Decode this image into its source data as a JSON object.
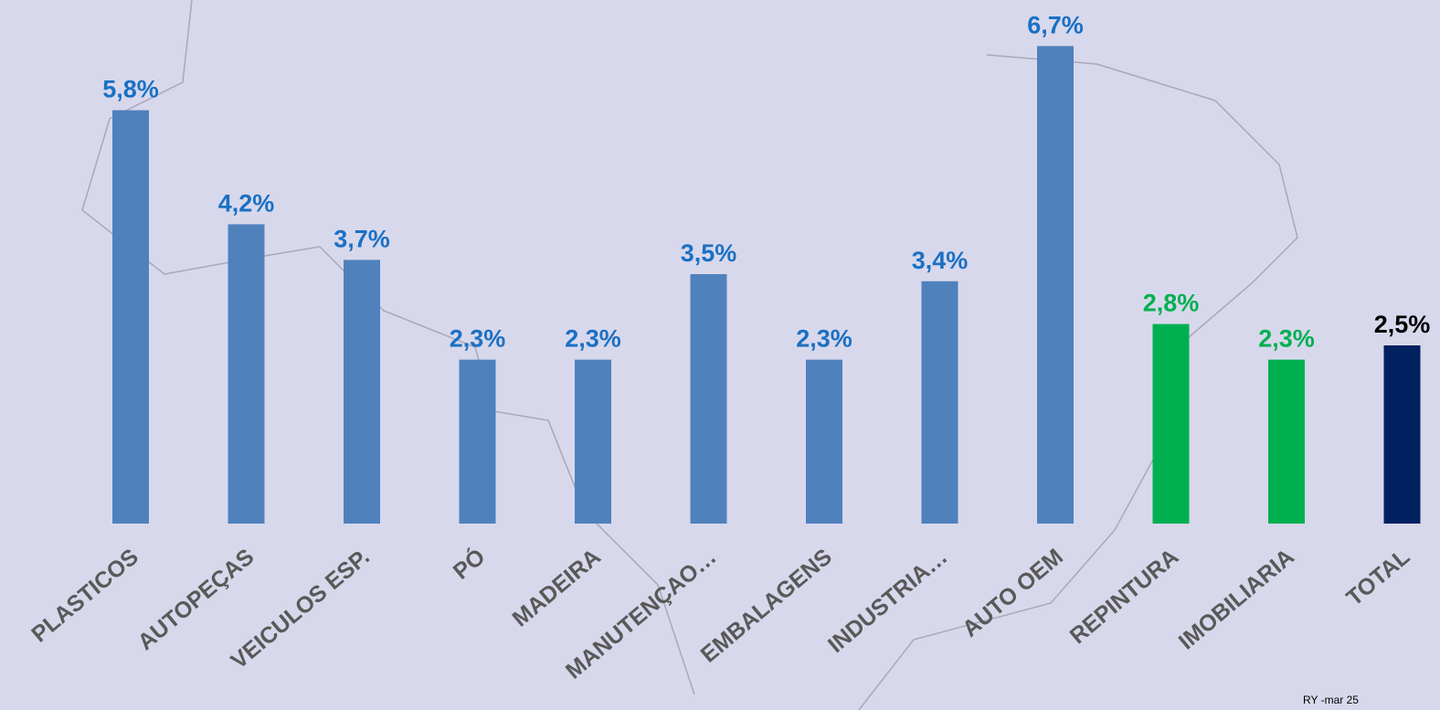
{
  "chart_data": {
    "type": "bar",
    "categories": [
      "PLASTICOS",
      "AUTOPEÇAS",
      "VEICULOS ESP.",
      "PÓ",
      "MADEIRA",
      "MANUTENÇAO…",
      "EMBALAGENS",
      "INDUSTRIA…",
      "AUTO OEM",
      "REPINTURA",
      "IMOBILIARIA",
      "TOTAL"
    ],
    "values": [
      5.8,
      4.2,
      3.7,
      2.3,
      2.3,
      3.5,
      2.3,
      3.4,
      6.7,
      2.8,
      2.3,
      2.5
    ],
    "value_labels": [
      "5,8%",
      "4,2%",
      "3,7%",
      "2,3%",
      "2,3%",
      "3,5%",
      "2,3%",
      "3,4%",
      "6,7%",
      "2,8%",
      "2,3%",
      "2,5%"
    ],
    "colors": [
      "#4f81bd",
      "#4f81bd",
      "#4f81bd",
      "#4f81bd",
      "#4f81bd",
      "#4f81bd",
      "#4f81bd",
      "#4f81bd",
      "#4f81bd",
      "#00b050",
      "#00b050",
      "#002060"
    ],
    "label_colors": [
      "#1a70c4",
      "#1a70c4",
      "#1a70c4",
      "#1a70c4",
      "#1a70c4",
      "#1a70c4",
      "#1a70c4",
      "#1a70c4",
      "#1a70c4",
      "#00b050",
      "#00b050",
      "#000000"
    ],
    "footnote": "RY -mar 25"
  }
}
